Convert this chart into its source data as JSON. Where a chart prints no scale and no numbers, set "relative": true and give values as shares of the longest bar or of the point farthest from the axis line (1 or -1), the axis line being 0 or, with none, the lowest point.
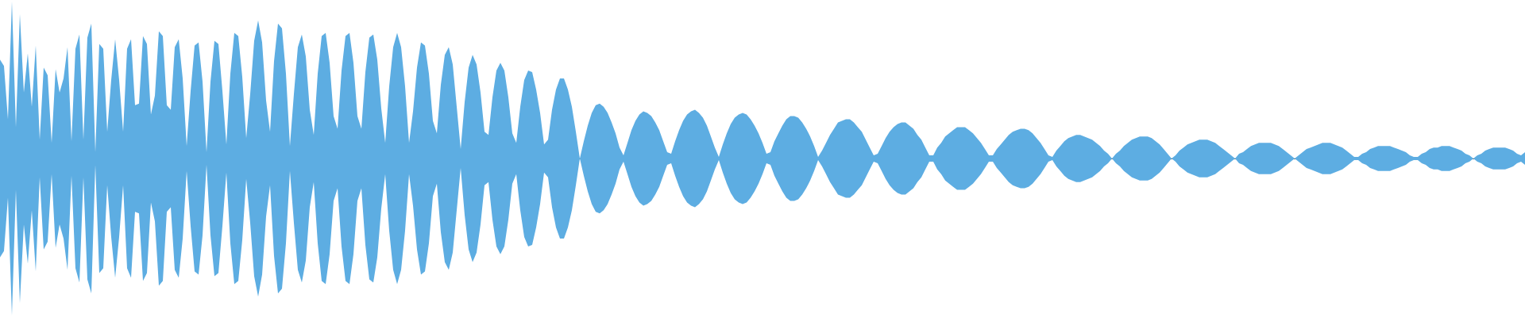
{
  "chart_data": {
    "type": "area",
    "relative": true,
    "categories": [
      null,
      null,
      null,
      null,
      null,
      null,
      null,
      null,
      null,
      null,
      null,
      null,
      null,
      null,
      null,
      null,
      null,
      null,
      null,
      null,
      null,
      null,
      null,
      null,
      null,
      null,
      null,
      null,
      null,
      null,
      null,
      null,
      null,
      null,
      null,
      null,
      null,
      null,
      null,
      null,
      null,
      null,
      null,
      null,
      null,
      null,
      null,
      null,
      null,
      null,
      null,
      null,
      null,
      null,
      null,
      null,
      null,
      null,
      null,
      null,
      null,
      null,
      null,
      null,
      null,
      null,
      null,
      null,
      null,
      null,
      null,
      null,
      null,
      null,
      null,
      null,
      null,
      null,
      null,
      null,
      null,
      null,
      null,
      null,
      null,
      null,
      null,
      null,
      null,
      null,
      null,
      null,
      null,
      null,
      null,
      null,
      null,
      null,
      null,
      null,
      null,
      null,
      null,
      null,
      null,
      null,
      null,
      null,
      null,
      null,
      null,
      null,
      null,
      null,
      null,
      null,
      null,
      null,
      null,
      null,
      null,
      null,
      null,
      null,
      null,
      null,
      null,
      null,
      null,
      null,
      null,
      null,
      null,
      null,
      null,
      null,
      null,
      null,
      null,
      null,
      null,
      null,
      null,
      null,
      null,
      null,
      null,
      null,
      null,
      null,
      null,
      null,
      null,
      null,
      null,
      null,
      null,
      null,
      null,
      null,
      null,
      null,
      null,
      null,
      null,
      null,
      null,
      null,
      null,
      null,
      null,
      null,
      null,
      null,
      null,
      null,
      null,
      null,
      null,
      null,
      null,
      null,
      null,
      null,
      null,
      null,
      null,
      null,
      null,
      null,
      null,
      null,
      null,
      null,
      null,
      null,
      null,
      null,
      null,
      null,
      null,
      null,
      null,
      null,
      null,
      null,
      null,
      null,
      null,
      null,
      null,
      null,
      null,
      null,
      null,
      null,
      null,
      null,
      null,
      null,
      null,
      null,
      null,
      null,
      null,
      null,
      null,
      null,
      null,
      null,
      null,
      null,
      null,
      null,
      null,
      null,
      null,
      null,
      null,
      null,
      null,
      null,
      null,
      null,
      null,
      null,
      null,
      null,
      null,
      null,
      null,
      null,
      null,
      null,
      null,
      null,
      null,
      null,
      null,
      null,
      null,
      null,
      null,
      null,
      null,
      null,
      null,
      null,
      null,
      null,
      null,
      null,
      null,
      null,
      null,
      null,
      null,
      null,
      null,
      null,
      null,
      null,
      null,
      null,
      null,
      null,
      null,
      null,
      null,
      null,
      null,
      null,
      null,
      null,
      null,
      null,
      null,
      null,
      null,
      null,
      null,
      null,
      null,
      null,
      null,
      null,
      null,
      null,
      null,
      null,
      null,
      null,
      null,
      null,
      null,
      null,
      null,
      null,
      null,
      null,
      null,
      null,
      null,
      null,
      null,
      null,
      null,
      null,
      null,
      null,
      null,
      null,
      null,
      null,
      null,
      null,
      null,
      null,
      null,
      null,
      null,
      null,
      null,
      null,
      null,
      null,
      null,
      null,
      null,
      null,
      null,
      null,
      null,
      null,
      null,
      null,
      null,
      null,
      null,
      null,
      null,
      null,
      null,
      null,
      null,
      null,
      null,
      null,
      null,
      null,
      null,
      null,
      null,
      null,
      null,
      null,
      null,
      null,
      null,
      null,
      null,
      null,
      null,
      null,
      null
    ],
    "series": [
      {
        "color": "#5dade2",
        "values": [
          0.63,
          0.59,
          0.25,
          1.0,
          0.2,
          0.92,
          0.42,
          0.67,
          0.33,
          0.72,
          0.12,
          0.58,
          0.53,
          0.1,
          0.57,
          0.42,
          0.51,
          0.71,
          0.11,
          0.7,
          0.79,
          0.12,
          0.77,
          0.86,
          0.04,
          0.73,
          0.7,
          0.17,
          0.5,
          0.76,
          0.5,
          0.17,
          0.7,
          0.76,
          0.34,
          0.35,
          0.78,
          0.73,
          0.28,
          0.4,
          0.81,
          0.78,
          0.34,
          0.31,
          0.71,
          0.76,
          0.51,
          0.08,
          0.43,
          0.72,
          0.74,
          0.49,
          0.04,
          0.49,
          0.75,
          0.73,
          0.43,
          0.09,
          0.54,
          0.8,
          0.78,
          0.52,
          0.13,
          0.41,
          0.75,
          0.88,
          0.74,
          0.37,
          0.17,
          0.62,
          0.86,
          0.83,
          0.54,
          0.08,
          0.41,
          0.71,
          0.79,
          0.65,
          0.31,
          0.15,
          0.54,
          0.78,
          0.8,
          0.61,
          0.27,
          0.19,
          0.56,
          0.78,
          0.8,
          0.61,
          0.27,
          0.19,
          0.55,
          0.77,
          0.79,
          0.63,
          0.32,
          0.1,
          0.46,
          0.71,
          0.8,
          0.71,
          0.46,
          0.1,
          0.3,
          0.58,
          0.74,
          0.72,
          0.54,
          0.24,
          0.16,
          0.47,
          0.66,
          0.71,
          0.6,
          0.33,
          0.06,
          0.36,
          0.58,
          0.66,
          0.6,
          0.42,
          0.17,
          0.15,
          0.39,
          0.56,
          0.61,
          0.56,
          0.39,
          0.16,
          0.1,
          0.33,
          0.5,
          0.56,
          0.55,
          0.44,
          0.29,
          0.09,
          0.12,
          0.31,
          0.44,
          0.51,
          0.51,
          0.44,
          0.33,
          0.17,
          0,
          0.11,
          0.21,
          0.29,
          0.34,
          0.35,
          0.33,
          0.29,
          0.23,
          0.16,
          0.07,
          0.02,
          0.1,
          0.18,
          0.24,
          0.28,
          0.3,
          0.29,
          0.27,
          0.23,
          0.18,
          0.11,
          0.04,
          0.03,
          0.11,
          0.18,
          0.24,
          0.28,
          0.3,
          0.31,
          0.29,
          0.26,
          0.21,
          0.14,
          0.07,
          0.01,
          0.09,
          0.16,
          0.22,
          0.26,
          0.28,
          0.29,
          0.28,
          0.25,
          0.21,
          0.16,
          0.1,
          0.03,
          0.04,
          0.11,
          0.16,
          0.21,
          0.25,
          0.27,
          0.27,
          0.26,
          0.23,
          0.19,
          0.14,
          0.08,
          0.01,
          0.05,
          0.1,
          0.15,
          0.19,
          0.23,
          0.24,
          0.25,
          0.25,
          0.23,
          0.2,
          0.17,
          0.12,
          0.07,
          0.02,
          0.03,
          0.08,
          0.13,
          0.17,
          0.2,
          0.22,
          0.23,
          0.23,
          0.21,
          0.19,
          0.15,
          0.12,
          0.07,
          0.02,
          0.02,
          0.07,
          0.1,
          0.14,
          0.16,
          0.18,
          0.2,
          0.2,
          0.2,
          0.18,
          0.16,
          0.13,
          0.1,
          0.06,
          0.02,
          0.02,
          0.06,
          0.09,
          0.12,
          0.15,
          0.17,
          0.18,
          0.19,
          0.19,
          0.18,
          0.16,
          0.13,
          0.1,
          0.06,
          0.02,
          0.01,
          0.05,
          0.08,
          0.11,
          0.13,
          0.14,
          0.15,
          0.15,
          0.14,
          0.13,
          0.12,
          0.1,
          0.08,
          0.05,
          0.03,
          0,
          0.03,
          0.05,
          0.08,
          0.1,
          0.12,
          0.13,
          0.14,
          0.14,
          0.14,
          0.13,
          0.11,
          0.09,
          0.06,
          0.03,
          0,
          0.02,
          0.05,
          0.07,
          0.09,
          0.1,
          0.11,
          0.12,
          0.12,
          0.12,
          0.11,
          0.1,
          0.08,
          0.06,
          0.04,
          0.02,
          0,
          0.03,
          0.04,
          0.06,
          0.08,
          0.09,
          0.1,
          0.1,
          0.1,
          0.1,
          0.09,
          0.08,
          0.06,
          0.04,
          0.02,
          0,
          0.02,
          0.04,
          0.06,
          0.07,
          0.08,
          0.09,
          0.1,
          0.1,
          0.1,
          0.09,
          0.08,
          0.07,
          0.05,
          0.03,
          0.01,
          0.01,
          0.03,
          0.04,
          0.06,
          0.07,
          0.08,
          0.08,
          0.08,
          0.08,
          0.07,
          0.06,
          0.05,
          0.04,
          0.02,
          0.01,
          0.01,
          0.03,
          0.04,
          0.06,
          0.07,
          0.07,
          0.08,
          0.08,
          0.08,
          0.07,
          0.06,
          0.05,
          0.03,
          0.02,
          0,
          0.02,
          0.03,
          0.05,
          0.06,
          0.07,
          0.07,
          0.07,
          0.07,
          0.06,
          0.05,
          0.03,
          0.02,
          0.04
        ]
      },
      {
        "color": "#5dade2",
        "values": [
          -0.63,
          -0.59,
          -0.25,
          -1.0,
          -0.2,
          -0.92,
          -0.42,
          -0.67,
          -0.33,
          -0.72,
          -0.12,
          -0.58,
          -0.53,
          -0.1,
          -0.57,
          -0.42,
          -0.51,
          -0.71,
          -0.11,
          -0.7,
          -0.79,
          -0.12,
          -0.77,
          -0.86,
          -0.04,
          -0.73,
          -0.7,
          -0.17,
          -0.5,
          -0.76,
          -0.5,
          -0.17,
          -0.7,
          -0.76,
          -0.34,
          -0.35,
          -0.78,
          -0.73,
          -0.28,
          -0.4,
          -0.81,
          -0.78,
          -0.34,
          -0.31,
          -0.71,
          -0.76,
          -0.51,
          -0.08,
          -0.43,
          -0.72,
          -0.74,
          -0.49,
          -0.04,
          -0.49,
          -0.75,
          -0.73,
          -0.43,
          -0.09,
          -0.54,
          -0.8,
          -0.78,
          -0.52,
          -0.13,
          -0.41,
          -0.75,
          -0.88,
          -0.74,
          -0.37,
          -0.17,
          -0.62,
          -0.86,
          -0.83,
          -0.54,
          -0.08,
          -0.41,
          -0.71,
          -0.79,
          -0.65,
          -0.31,
          -0.15,
          -0.54,
          -0.78,
          -0.8,
          -0.61,
          -0.27,
          -0.19,
          -0.56,
          -0.78,
          -0.8,
          -0.61,
          -0.27,
          -0.19,
          -0.55,
          -0.77,
          -0.79,
          -0.63,
          -0.32,
          -0.1,
          -0.46,
          -0.71,
          -0.8,
          -0.71,
          -0.46,
          -0.1,
          -0.3,
          -0.58,
          -0.74,
          -0.72,
          -0.54,
          -0.24,
          -0.16,
          -0.47,
          -0.66,
          -0.71,
          -0.6,
          -0.33,
          -0.06,
          -0.36,
          -0.58,
          -0.66,
          -0.6,
          -0.42,
          -0.17,
          -0.15,
          -0.39,
          -0.56,
          -0.61,
          -0.56,
          -0.39,
          -0.16,
          -0.1,
          -0.33,
          -0.5,
          -0.56,
          -0.55,
          -0.44,
          -0.29,
          -0.09,
          -0.12,
          -0.31,
          -0.44,
          -0.51,
          -0.51,
          -0.44,
          -0.33,
          -0.17,
          0,
          -0.11,
          -0.21,
          -0.29,
          -0.34,
          -0.35,
          -0.33,
          -0.29,
          -0.23,
          -0.16,
          -0.07,
          -0.02,
          -0.1,
          -0.18,
          -0.24,
          -0.28,
          -0.3,
          -0.29,
          -0.27,
          -0.23,
          -0.18,
          -0.11,
          -0.04,
          -0.03,
          -0.11,
          -0.18,
          -0.24,
          -0.28,
          -0.3,
          -0.31,
          -0.29,
          -0.26,
          -0.21,
          -0.14,
          -0.07,
          -0.01,
          -0.09,
          -0.16,
          -0.22,
          -0.26,
          -0.28,
          -0.29,
          -0.28,
          -0.25,
          -0.21,
          -0.16,
          -0.1,
          -0.03,
          -0.04,
          -0.11,
          -0.16,
          -0.21,
          -0.25,
          -0.27,
          -0.27,
          -0.26,
          -0.23,
          -0.19,
          -0.14,
          -0.08,
          -0.01,
          -0.05,
          -0.1,
          -0.15,
          -0.19,
          -0.23,
          -0.24,
          -0.25,
          -0.25,
          -0.23,
          -0.2,
          -0.17,
          -0.12,
          -0.07,
          -0.02,
          -0.03,
          -0.08,
          -0.13,
          -0.17,
          -0.2,
          -0.22,
          -0.23,
          -0.23,
          -0.21,
          -0.19,
          -0.15,
          -0.12,
          -0.07,
          -0.02,
          -0.02,
          -0.07,
          -0.1,
          -0.14,
          -0.16,
          -0.18,
          -0.2,
          -0.2,
          -0.2,
          -0.18,
          -0.16,
          -0.13,
          -0.1,
          -0.06,
          -0.02,
          -0.02,
          -0.06,
          -0.09,
          -0.12,
          -0.15,
          -0.17,
          -0.18,
          -0.19,
          -0.19,
          -0.18,
          -0.16,
          -0.13,
          -0.1,
          -0.06,
          -0.02,
          -0.01,
          -0.05,
          -0.08,
          -0.11,
          -0.13,
          -0.14,
          -0.15,
          -0.15,
          -0.14,
          -0.13,
          -0.12,
          -0.1,
          -0.08,
          -0.05,
          -0.03,
          0,
          -0.03,
          -0.05,
          -0.08,
          -0.1,
          -0.12,
          -0.13,
          -0.14,
          -0.14,
          -0.14,
          -0.13,
          -0.11,
          -0.09,
          -0.06,
          -0.03,
          0,
          -0.02,
          -0.05,
          -0.07,
          -0.09,
          -0.1,
          -0.11,
          -0.12,
          -0.12,
          -0.12,
          -0.11,
          -0.1,
          -0.08,
          -0.06,
          -0.04,
          -0.02,
          0,
          -0.03,
          -0.04,
          -0.06,
          -0.08,
          -0.09,
          -0.1,
          -0.1,
          -0.1,
          -0.1,
          -0.09,
          -0.08,
          -0.06,
          -0.04,
          -0.02,
          0,
          -0.02,
          -0.04,
          -0.06,
          -0.07,
          -0.08,
          -0.09,
          -0.1,
          -0.1,
          -0.1,
          -0.09,
          -0.08,
          -0.07,
          -0.05,
          -0.03,
          -0.01,
          -0.01,
          -0.03,
          -0.04,
          -0.06,
          -0.07,
          -0.08,
          -0.08,
          -0.08,
          -0.08,
          -0.07,
          -0.06,
          -0.05,
          -0.04,
          -0.02,
          -0.01,
          -0.01,
          -0.03,
          -0.04,
          -0.06,
          -0.07,
          -0.07,
          -0.08,
          -0.08,
          -0.08,
          -0.07,
          -0.06,
          -0.05,
          -0.03,
          -0.02,
          0,
          -0.02,
          -0.03,
          -0.05,
          -0.06,
          -0.07,
          -0.07,
          -0.07,
          -0.07,
          -0.06,
          -0.05,
          -0.03,
          -0.02,
          -0.04
        ]
      }
    ]
  }
}
